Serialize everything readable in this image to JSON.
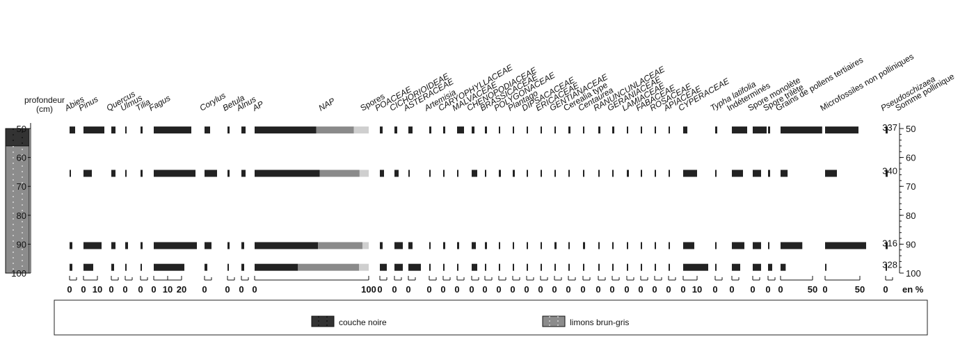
{
  "chart_data": {
    "type": "pollen",
    "ylabel": "profondeur",
    "yunit": "(cm)",
    "xunit": "en %",
    "ylim": [
      50,
      100
    ],
    "yticks": [
      50,
      60,
      70,
      80,
      90,
      100
    ],
    "depths": [
      50.5,
      65.5,
      90.5,
      98
    ],
    "bar_color": "#222222",
    "lithology": [
      {
        "name": "couche noire",
        "color": "#333333",
        "top": 50,
        "bottom": 56
      },
      {
        "name": "limons brun-gris",
        "color": "#8c8c8c",
        "top": 56,
        "bottom": 100
      }
    ],
    "taxa": [
      {
        "name": "Abies",
        "italic": true,
        "values": [
          4,
          0.5,
          2,
          2
        ],
        "xticks": [
          0
        ]
      },
      {
        "name": "Pinus",
        "italic": true,
        "values": [
          15,
          6,
          13,
          7
        ],
        "xticks": [
          0,
          10
        ]
      },
      {
        "name": "Quercus",
        "italic": true,
        "values": [
          3,
          3,
          3,
          2
        ],
        "xticks": [
          0
        ]
      },
      {
        "name": "Ulmus",
        "italic": true,
        "values": [
          1,
          1,
          2,
          1
        ],
        "xticks": [
          0
        ]
      },
      {
        "name": "Tilia",
        "italic": true,
        "values": [
          1.5,
          1.5,
          1.5,
          0.5
        ],
        "xticks": [
          0
        ]
      },
      {
        "name": "Fagus",
        "italic": true,
        "values": [
          27,
          30,
          31,
          22
        ],
        "xticks": [
          0,
          10,
          20
        ]
      },
      {
        "name": "Corylus",
        "italic": true,
        "values": [
          4,
          9,
          5,
          2
        ],
        "xticks": [
          0
        ]
      },
      {
        "name": "Betula",
        "italic": true,
        "values": [
          1.5,
          1.5,
          1.5,
          0.5
        ],
        "xticks": [
          0
        ]
      },
      {
        "name": "Alnus",
        "italic": true,
        "values": [
          3,
          3,
          2,
          2
        ],
        "xticks": [
          0
        ]
      },
      {
        "series": [
          {
            "name": "AP",
            "italic": true,
            "color": "#222222",
            "values": [
              54,
              57,
              55.5,
              38
            ]
          },
          {
            "name": "NAP",
            "italic": true,
            "color": "#8a8a8a",
            "values": [
              33,
              35,
              39,
              53.5
            ]
          },
          {
            "name": "Spores",
            "italic": false,
            "color": "#cfcfcf",
            "values": [
              13,
              8,
              5.5,
              8.5
            ]
          }
        ],
        "xticks": [
          0,
          100
        ]
      },
      {
        "name": "POACEAE",
        "italic": true,
        "values": [
          2,
          3,
          2,
          5
        ],
        "xticks": [
          0
        ]
      },
      {
        "name": "CICHORIOIDEAE",
        "italic": true,
        "values": [
          2,
          3,
          6,
          6
        ],
        "xticks": [
          0
        ]
      },
      {
        "name": "ASTERACEAE",
        "italic": true,
        "values": [
          3,
          0.5,
          3,
          9
        ],
        "xticks": [
          0
        ]
      },
      {
        "name": "Artemisia",
        "italic": true,
        "values": [
          1.5,
          0.5,
          1,
          0.5
        ],
        "xticks": [
          0
        ]
      },
      {
        "name": "CARYOPHYLLACEAE",
        "italic": true,
        "values": [
          1.5,
          0.5,
          1.5,
          0.5
        ],
        "xticks": [
          0
        ]
      },
      {
        "name": "MALVACEAE",
        "italic": true,
        "values": [
          5,
          0.5,
          1.5,
          0.5
        ],
        "xticks": [
          0
        ]
      },
      {
        "name": "CHENOPODIACEAE",
        "italic": true,
        "values": [
          2,
          4,
          3,
          4
        ],
        "xticks": [
          0
        ]
      },
      {
        "name": "BRASSICACEAE",
        "italic": true,
        "values": [
          1.5,
          0.5,
          1.5,
          0.5
        ],
        "xticks": [
          0
        ]
      },
      {
        "name": "POLYGONACEAE",
        "italic": true,
        "values": [
          0.5,
          1.5,
          0.5,
          0.5
        ],
        "xticks": [
          0
        ]
      },
      {
        "name": "Plantago",
        "italic": true,
        "values": [
          0.5,
          1.5,
          0.5,
          0.5
        ],
        "xticks": [
          0
        ]
      },
      {
        "name": "DIPSACACEAE",
        "italic": true,
        "values": [
          0.5,
          0.5,
          0.5,
          0.5
        ],
        "xticks": [
          0
        ]
      },
      {
        "name": "ERICACEAE",
        "italic": true,
        "values": [
          0.5,
          0.5,
          0.5,
          0.5
        ],
        "xticks": [
          0
        ]
      },
      {
        "name": "GENTIANACEAE",
        "italic": true,
        "values": [
          0.5,
          0.5,
          1.5,
          0.5
        ],
        "xticks": [
          0
        ]
      },
      {
        "name": "Cerealia type",
        "italic": false,
        "values": [
          1.5,
          0.5,
          0.5,
          0.5
        ],
        "xticks": [
          0
        ]
      },
      {
        "name": "Centaurea",
        "italic": true,
        "values": [
          0.5,
          0.5,
          1.5,
          0.5
        ],
        "xticks": [
          0
        ]
      },
      {
        "name": "RANUNCUNLACEAE",
        "italic": true,
        "values": [
          1.5,
          0.5,
          0.5,
          0.5
        ],
        "xticks": [
          0
        ]
      },
      {
        "name": "GERANIACEAE",
        "italic": true,
        "values": [
          1.5,
          0.5,
          0.5,
          0.5
        ],
        "xticks": [
          0
        ]
      },
      {
        "name": "LAMIACEAE",
        "italic": true,
        "values": [
          0.5,
          1.5,
          0.5,
          0.5
        ],
        "xticks": [
          0
        ]
      },
      {
        "name": "FABACEAE",
        "italic": true,
        "values": [
          0.5,
          0.5,
          0.5,
          0.5
        ],
        "xticks": [
          0
        ]
      },
      {
        "name": "ROSACEAE",
        "italic": true,
        "values": [
          0.5,
          0.5,
          0.5,
          0.5
        ],
        "xticks": [
          0
        ]
      },
      {
        "name": "APIACEAE",
        "italic": true,
        "values": [
          0.5,
          0.5,
          0.5,
          0.5
        ],
        "xticks": [
          0
        ]
      },
      {
        "name": "CYPERACEAE",
        "italic": true,
        "values": [
          3,
          10,
          8,
          18
        ],
        "xticks": [
          0,
          10
        ]
      },
      {
        "name": "Typha latifolia",
        "italic": true,
        "values": [
          1.5,
          0.5,
          0.5,
          0.5
        ],
        "xticks": [
          0
        ]
      },
      {
        "name": "Indéterminés",
        "italic": false,
        "values": [
          11,
          8,
          9,
          6
        ],
        "xticks": [
          0
        ]
      },
      {
        "name": "Spore monolète",
        "italic": false,
        "values": [
          10,
          6,
          6,
          6
        ],
        "xticks": [
          0
        ]
      },
      {
        "name": "Spore trilète",
        "italic": false,
        "values": [
          1.5,
          1.5,
          0.5,
          3
        ],
        "xticks": [
          0
        ]
      },
      {
        "name": "Grains de pollens tertiaires",
        "italic": false,
        "values": [
          65,
          11,
          34,
          8
        ],
        "xticks": [
          0,
          50
        ]
      },
      {
        "name": "Microfossiles non polliniques",
        "italic": false,
        "values": [
          48,
          17,
          59,
          0.5
        ],
        "xticks": [
          0,
          50
        ]
      },
      {
        "name": "Pseudoschizaea",
        "italic": true,
        "values": [
          1.5,
          1.5,
          1.5,
          0.5
        ],
        "xticks": [
          0
        ]
      }
    ],
    "totals": {
      "name": "Somme pollinique",
      "values": [
        337,
        340,
        316,
        328
      ]
    }
  }
}
